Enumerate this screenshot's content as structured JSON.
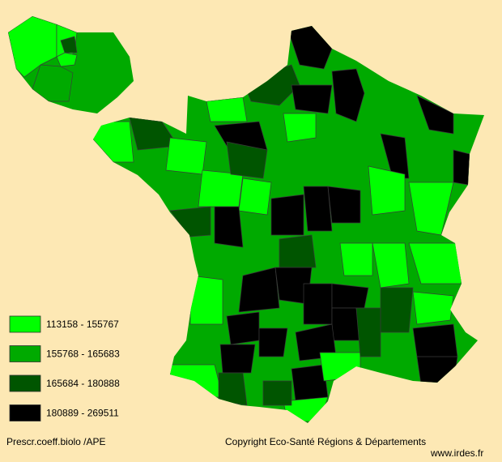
{
  "map": {
    "caption": "Prescr.coeff.biolo /APE",
    "copyright": "Copyright Eco-Santé Régions & Départements",
    "site": "www.irdes.fr",
    "legend": [
      {
        "label": "113158 - 155767",
        "color": "#00ff00"
      },
      {
        "label": "155768 - 165683",
        "color": "#00aa00"
      },
      {
        "label": "165684 - 180888",
        "color": "#005500"
      },
      {
        "label": "180889 - 269511",
        "color": "#000000"
      }
    ]
  }
}
